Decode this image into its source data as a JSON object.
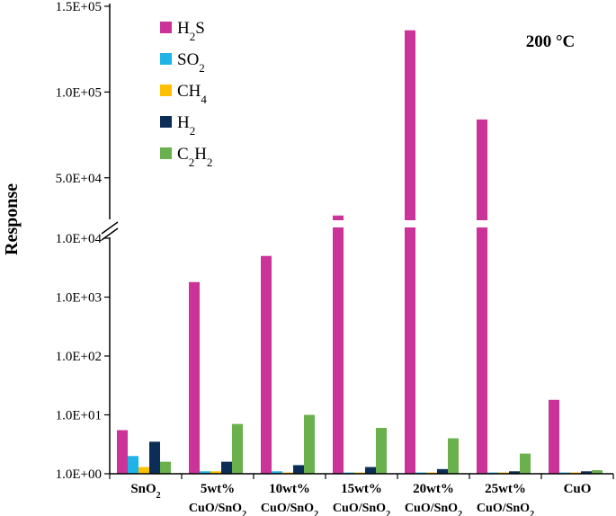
{
  "chart_data": {
    "type": "bar",
    "title": "200 °C",
    "ylabel": "Response",
    "y_scale": "broken: log 1 to 1e4 (lower), linear 2e4 to 1.5e5 (upper)",
    "lower_axis": {
      "scale": "log",
      "ylim": [
        1,
        10000
      ],
      "ticks": [
        "1.0E+00",
        "1.0E+01",
        "1.0E+02",
        "1.0E+03",
        "1.0E+04"
      ]
    },
    "upper_axis": {
      "scale": "linear",
      "ylim": [
        20000,
        150000
      ],
      "ticks": [
        "5.0E+04",
        "1.0E+05",
        "1.5E+05"
      ]
    },
    "categories": [
      {
        "line1": "SnO",
        "line1_sub": "2",
        "line2": "",
        "line2_sub": ""
      },
      {
        "line1": "5wt%",
        "line1_sub": "",
        "line2": "CuO/SnO",
        "line2_sub": "2"
      },
      {
        "line1": "10wt%",
        "line1_sub": "",
        "line2": "CuO/SnO",
        "line2_sub": "2"
      },
      {
        "line1": "15wt%",
        "line1_sub": "",
        "line2": "CuO/SnO",
        "line2_sub": "2"
      },
      {
        "line1": "20wt%",
        "line1_sub": "",
        "line2": "CuO/SnO",
        "line2_sub": "2"
      },
      {
        "line1": "25wt%",
        "line1_sub": "",
        "line2": "CuO/SnO",
        "line2_sub": "2"
      },
      {
        "line1": "CuO",
        "line1_sub": "",
        "line2": "",
        "line2_sub": ""
      }
    ],
    "series": [
      {
        "name": "H2S",
        "label": [
          "H",
          "2",
          "S"
        ],
        "color": "#cc3399",
        "values": [
          5.5,
          1800,
          5000,
          28000,
          136000,
          84000,
          18
        ]
      },
      {
        "name": "SO2",
        "label": [
          "SO",
          "2",
          ""
        ],
        "color": "#1eb4e8",
        "values": [
          2.0,
          1.1,
          1.1,
          1.05,
          1.05,
          1.05,
          1.05
        ]
      },
      {
        "name": "CH4",
        "label": [
          "CH",
          "4",
          ""
        ],
        "color": "#ffc000",
        "values": [
          1.3,
          1.1,
          1.05,
          1.05,
          1.05,
          1.05,
          1.05
        ]
      },
      {
        "name": "H2",
        "label": [
          "H",
          "2",
          ""
        ],
        "color": "#0c2d57",
        "values": [
          3.5,
          1.6,
          1.4,
          1.3,
          1.2,
          1.1,
          1.1
        ]
      },
      {
        "name": "C2H2",
        "label": [
          "C",
          "2",
          "H",
          "2"
        ],
        "color": "#6ab04c",
        "values": [
          1.6,
          7.0,
          10.0,
          6.0,
          4.0,
          2.2,
          1.15
        ]
      }
    ],
    "legend_position": "top-left",
    "grid": false
  }
}
